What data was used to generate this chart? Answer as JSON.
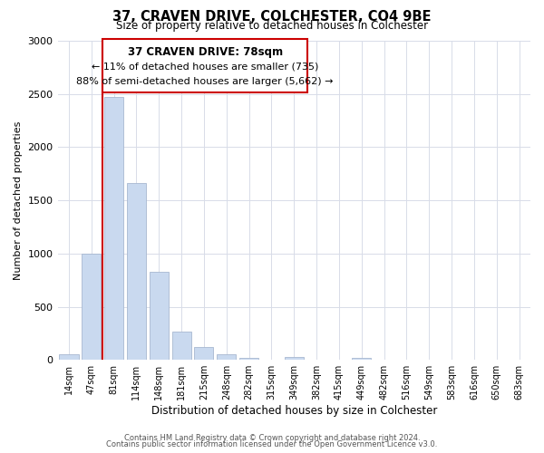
{
  "title": "37, CRAVEN DRIVE, COLCHESTER, CO4 9BE",
  "subtitle": "Size of property relative to detached houses in Colchester",
  "xlabel": "Distribution of detached houses by size in Colchester",
  "ylabel": "Number of detached properties",
  "bar_labels": [
    "14sqm",
    "47sqm",
    "81sqm",
    "114sqm",
    "148sqm",
    "181sqm",
    "215sqm",
    "248sqm",
    "282sqm",
    "315sqm",
    "349sqm",
    "382sqm",
    "415sqm",
    "449sqm",
    "482sqm",
    "516sqm",
    "549sqm",
    "583sqm",
    "616sqm",
    "650sqm",
    "683sqm"
  ],
  "bar_heights": [
    50,
    1000,
    2470,
    1660,
    830,
    265,
    120,
    50,
    20,
    0,
    30,
    0,
    0,
    15,
    0,
    0,
    0,
    0,
    0,
    0,
    0
  ],
  "bar_color": "#c9d9ef",
  "bar_edge_color": "#a8b8d0",
  "highlight_bar_index": 2,
  "highlight_color": "#cc0000",
  "property_line_x": 1.5,
  "annotation_title": "37 CRAVEN DRIVE: 78sqm",
  "annotation_line1": "← 11% of detached houses are smaller (735)",
  "annotation_line2": "88% of semi-detached houses are larger (5,662) →",
  "annotation_box_color": "#ffffff",
  "annotation_box_edge_color": "#cc0000",
  "ylim": [
    0,
    3000
  ],
  "yticks": [
    0,
    500,
    1000,
    1500,
    2000,
    2500,
    3000
  ],
  "footer_line1": "Contains HM Land Registry data © Crown copyright and database right 2024.",
  "footer_line2": "Contains public sector information licensed under the Open Government Licence v3.0.",
  "background_color": "#ffffff",
  "grid_color": "#d8dce8"
}
